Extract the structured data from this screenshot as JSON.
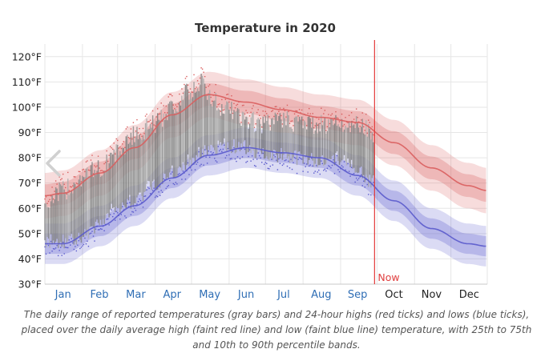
{
  "chart_data": {
    "type": "area",
    "title": "Temperature in 2020",
    "xlabel": "",
    "ylabel": "",
    "ylim": [
      30,
      125
    ],
    "yticks": [
      "30°F",
      "40°F",
      "50°F",
      "60°F",
      "70°F",
      "80°F",
      "90°F",
      "100°F",
      "110°F",
      "120°F"
    ],
    "ytick_values": [
      30,
      40,
      50,
      60,
      70,
      80,
      90,
      100,
      110,
      120
    ],
    "months": [
      "Jan",
      "Feb",
      "Mar",
      "Apr",
      "May",
      "Jun",
      "Jul",
      "Aug",
      "Sep",
      "Oct",
      "Nov",
      "Dec"
    ],
    "grid": true,
    "now": {
      "label": "Now",
      "day": 272
    },
    "climatology_days": [
      0,
      15,
      46,
      74,
      105,
      135,
      166,
      196,
      227,
      258,
      288,
      319,
      349,
      365
    ],
    "avg_high": [
      65,
      66,
      74,
      84,
      97,
      105,
      102,
      99,
      96,
      94,
      86,
      76,
      69,
      67
    ],
    "avg_low": [
      46,
      46,
      53,
      61,
      72,
      81,
      84,
      82,
      80,
      73,
      63,
      52,
      46,
      45
    ],
    "observed_days": [
      0,
      15,
      30,
      46,
      60,
      74,
      90,
      105,
      120,
      130,
      135,
      150,
      166,
      180,
      196,
      210,
      227,
      240,
      250,
      258,
      272
    ],
    "observed_high": [
      62,
      67,
      72,
      76,
      82,
      89,
      93,
      100,
      106,
      110,
      104,
      99,
      95,
      93,
      95,
      94,
      93,
      94,
      93,
      93,
      90
    ],
    "observed_low": [
      47,
      47,
      49,
      54,
      61,
      63,
      70,
      74,
      79,
      82,
      83,
      85,
      84,
      82,
      81,
      80,
      79,
      80,
      79,
      74,
      70
    ],
    "colors": {
      "high": "#d95e5e",
      "low": "#5a5acc",
      "observed": "#8c8c8c",
      "now": "#e33b3b",
      "month_past": "#2f6eb5",
      "month_future": "#222222"
    },
    "caption": "The daily range of reported temperatures (gray bars) and 24-hour highs (red ticks) and lows (blue ticks), placed over the daily average high (faint red line) and low (faint blue line) temperature, with 25th to 75th and 10th to 90th percentile bands."
  }
}
